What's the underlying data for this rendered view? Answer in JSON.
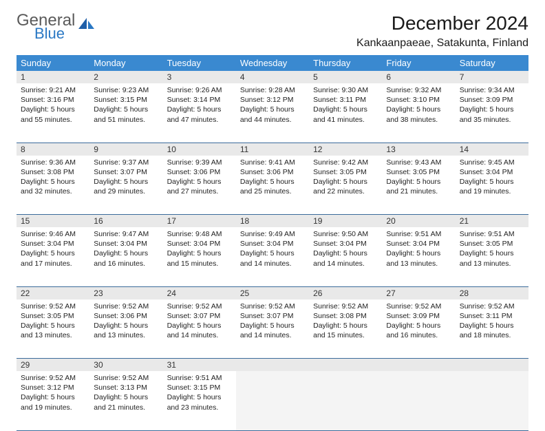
{
  "logo": {
    "text1": "General",
    "text2": "Blue"
  },
  "title": "December 2024",
  "location": "Kankaanpaeae, Satakunta, Finland",
  "colors": {
    "header_bg": "#3a89d0",
    "header_text": "#ffffff",
    "daynum_bg": "#e9e9e9",
    "row_border": "#3a6a9a",
    "logo_gray": "#5a5a5a",
    "logo_blue": "#2a78c4"
  },
  "weekdays": [
    "Sunday",
    "Monday",
    "Tuesday",
    "Wednesday",
    "Thursday",
    "Friday",
    "Saturday"
  ],
  "weeks": [
    [
      {
        "n": "1",
        "sr": "9:21 AM",
        "ss": "3:16 PM",
        "dl": "5 hours and 55 minutes."
      },
      {
        "n": "2",
        "sr": "9:23 AM",
        "ss": "3:15 PM",
        "dl": "5 hours and 51 minutes."
      },
      {
        "n": "3",
        "sr": "9:26 AM",
        "ss": "3:14 PM",
        "dl": "5 hours and 47 minutes."
      },
      {
        "n": "4",
        "sr": "9:28 AM",
        "ss": "3:12 PM",
        "dl": "5 hours and 44 minutes."
      },
      {
        "n": "5",
        "sr": "9:30 AM",
        "ss": "3:11 PM",
        "dl": "5 hours and 41 minutes."
      },
      {
        "n": "6",
        "sr": "9:32 AM",
        "ss": "3:10 PM",
        "dl": "5 hours and 38 minutes."
      },
      {
        "n": "7",
        "sr": "9:34 AM",
        "ss": "3:09 PM",
        "dl": "5 hours and 35 minutes."
      }
    ],
    [
      {
        "n": "8",
        "sr": "9:36 AM",
        "ss": "3:08 PM",
        "dl": "5 hours and 32 minutes."
      },
      {
        "n": "9",
        "sr": "9:37 AM",
        "ss": "3:07 PM",
        "dl": "5 hours and 29 minutes."
      },
      {
        "n": "10",
        "sr": "9:39 AM",
        "ss": "3:06 PM",
        "dl": "5 hours and 27 minutes."
      },
      {
        "n": "11",
        "sr": "9:41 AM",
        "ss": "3:06 PM",
        "dl": "5 hours and 25 minutes."
      },
      {
        "n": "12",
        "sr": "9:42 AM",
        "ss": "3:05 PM",
        "dl": "5 hours and 22 minutes."
      },
      {
        "n": "13",
        "sr": "9:43 AM",
        "ss": "3:05 PM",
        "dl": "5 hours and 21 minutes."
      },
      {
        "n": "14",
        "sr": "9:45 AM",
        "ss": "3:04 PM",
        "dl": "5 hours and 19 minutes."
      }
    ],
    [
      {
        "n": "15",
        "sr": "9:46 AM",
        "ss": "3:04 PM",
        "dl": "5 hours and 17 minutes."
      },
      {
        "n": "16",
        "sr": "9:47 AM",
        "ss": "3:04 PM",
        "dl": "5 hours and 16 minutes."
      },
      {
        "n": "17",
        "sr": "9:48 AM",
        "ss": "3:04 PM",
        "dl": "5 hours and 15 minutes."
      },
      {
        "n": "18",
        "sr": "9:49 AM",
        "ss": "3:04 PM",
        "dl": "5 hours and 14 minutes."
      },
      {
        "n": "19",
        "sr": "9:50 AM",
        "ss": "3:04 PM",
        "dl": "5 hours and 14 minutes."
      },
      {
        "n": "20",
        "sr": "9:51 AM",
        "ss": "3:04 PM",
        "dl": "5 hours and 13 minutes."
      },
      {
        "n": "21",
        "sr": "9:51 AM",
        "ss": "3:05 PM",
        "dl": "5 hours and 13 minutes."
      }
    ],
    [
      {
        "n": "22",
        "sr": "9:52 AM",
        "ss": "3:05 PM",
        "dl": "5 hours and 13 minutes."
      },
      {
        "n": "23",
        "sr": "9:52 AM",
        "ss": "3:06 PM",
        "dl": "5 hours and 13 minutes."
      },
      {
        "n": "24",
        "sr": "9:52 AM",
        "ss": "3:07 PM",
        "dl": "5 hours and 14 minutes."
      },
      {
        "n": "25",
        "sr": "9:52 AM",
        "ss": "3:07 PM",
        "dl": "5 hours and 14 minutes."
      },
      {
        "n": "26",
        "sr": "9:52 AM",
        "ss": "3:08 PM",
        "dl": "5 hours and 15 minutes."
      },
      {
        "n": "27",
        "sr": "9:52 AM",
        "ss": "3:09 PM",
        "dl": "5 hours and 16 minutes."
      },
      {
        "n": "28",
        "sr": "9:52 AM",
        "ss": "3:11 PM",
        "dl": "5 hours and 18 minutes."
      }
    ],
    [
      {
        "n": "29",
        "sr": "9:52 AM",
        "ss": "3:12 PM",
        "dl": "5 hours and 19 minutes."
      },
      {
        "n": "30",
        "sr": "9:52 AM",
        "ss": "3:13 PM",
        "dl": "5 hours and 21 minutes."
      },
      {
        "n": "31",
        "sr": "9:51 AM",
        "ss": "3:15 PM",
        "dl": "5 hours and 23 minutes."
      },
      null,
      null,
      null,
      null
    ]
  ],
  "labels": {
    "sunrise": "Sunrise:",
    "sunset": "Sunset:",
    "daylight": "Daylight:"
  }
}
